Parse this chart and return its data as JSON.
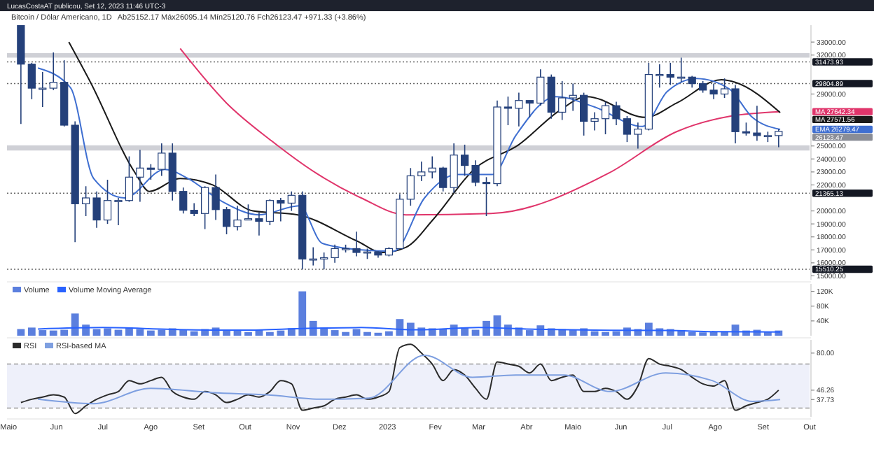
{
  "chart_data": [
    {
      "type": "candlestick",
      "title": "Bitcoin / Dólar Americano, 1D",
      "subtitle": "Ab25152.17 Máx26095.14 Mín25120.76 Fch26123.47 +971.33 (+3.86%)",
      "annotations": [
        "LucasCostaAT publicou, Set 12, 2023 11:46 UTC-3",
        "26123.47"
      ],
      "xlim": [
        "2022-04-30",
        "2023-10-01"
      ],
      "tick_labels": "y",
      "ylim": [
        14700,
        34300
      ],
      "yticks": [
        {
          "value": 15000,
          "label": "15000.00"
        },
        {
          "value": 16000,
          "label": "16000.00"
        },
        {
          "value": 17000,
          "label": "17000.00"
        },
        {
          "value": 18000,
          "label": "18000.00"
        },
        {
          "value": 19000,
          "label": "19000.00"
        },
        {
          "value": 20000,
          "label": "20000.00"
        },
        {
          "value": 22000,
          "label": "22000.00"
        },
        {
          "value": 23000,
          "label": "23000.00"
        },
        {
          "value": 24000,
          "label": "24000.00"
        },
        {
          "value": 25000,
          "label": "25000.00"
        },
        {
          "value": 29000,
          "label": "29000.00"
        },
        {
          "value": 32000,
          "label": "32000.00"
        },
        {
          "value": 33000,
          "label": "33000.00"
        }
      ],
      "color": "#24407a",
      "legend": "right",
      "x": [
        "2022-05-09",
        "2022-05-16",
        "2022-05-23",
        "2022-05-30",
        "2022-06-06",
        "2022-06-13",
        "2022-06-20",
        "2022-06-27",
        "2022-07-04",
        "2022-07-11",
        "2022-07-18",
        "2022-07-25",
        "2022-08-01",
        "2022-08-08",
        "2022-08-15",
        "2022-08-22",
        "2022-08-29",
        "2022-09-05",
        "2022-09-12",
        "2022-09-19",
        "2022-09-26",
        "2022-10-03",
        "2022-10-10",
        "2022-10-17",
        "2022-10-24",
        "2022-10-31",
        "2022-11-07",
        "2022-11-14",
        "2022-11-21",
        "2022-11-28",
        "2022-12-05",
        "2022-12-12",
        "2022-12-19",
        "2022-12-26",
        "2023-01-02",
        "2023-01-09",
        "2023-01-16",
        "2023-01-23",
        "2023-01-30",
        "2023-02-06",
        "2023-02-13",
        "2023-02-20",
        "2023-02-27",
        "2023-03-06",
        "2023-03-13",
        "2023-03-20",
        "2023-03-27",
        "2023-04-03",
        "2023-04-10",
        "2023-04-17",
        "2023-04-24",
        "2023-05-01",
        "2023-05-08",
        "2023-05-15",
        "2023-05-22",
        "2023-05-29",
        "2023-06-05",
        "2023-06-12",
        "2023-06-19",
        "2023-06-26",
        "2023-07-03",
        "2023-07-10",
        "2023-07-17",
        "2023-07-24",
        "2023-07-31",
        "2023-08-07",
        "2023-08-14",
        "2023-08-21",
        "2023-08-28",
        "2023-09-04",
        "2023-09-11"
      ],
      "ohlc": [
        [
          34300,
          34300,
          26700,
          31300
        ],
        [
          31300,
          31400,
          28600,
          29450
        ],
        [
          29450,
          30700,
          28000,
          29450
        ],
        [
          29450,
          32200,
          29300,
          29900
        ],
        [
          29900,
          31600,
          26500,
          26600
        ],
        [
          26600,
          26900,
          17600,
          20550
        ],
        [
          20550,
          21900,
          19600,
          21000
        ],
        [
          21000,
          21500,
          18700,
          19300
        ],
        [
          19300,
          22400,
          19000,
          20800
        ],
        [
          20800,
          21000,
          18900,
          20800
        ],
        [
          20800,
          24200,
          20700,
          22600
        ],
        [
          22600,
          24700,
          20700,
          23300
        ],
        [
          23300,
          23600,
          22400,
          23200
        ],
        [
          23200,
          25200,
          22700,
          24450
        ],
        [
          24450,
          25200,
          20800,
          21500
        ],
        [
          21500,
          21800,
          19800,
          20050
        ],
        [
          20050,
          20600,
          19600,
          19800
        ],
        [
          19800,
          21900,
          18600,
          21800
        ],
        [
          21800,
          22800,
          19300,
          20100
        ],
        [
          20100,
          20300,
          18200,
          18800
        ],
        [
          18800,
          20400,
          18500,
          19300
        ],
        [
          19300,
          20500,
          19300,
          19400
        ],
        [
          19400,
          19900,
          18100,
          19200
        ],
        [
          19200,
          20900,
          18900,
          20800
        ],
        [
          20800,
          21000,
          19200,
          20600
        ],
        [
          20600,
          21500,
          20000,
          21200
        ],
        [
          21200,
          21500,
          15500,
          16300
        ],
        [
          16300,
          17200,
          15800,
          16300
        ],
        [
          16300,
          16800,
          15500,
          16400
        ],
        [
          16400,
          17400,
          16000,
          17100
        ],
        [
          17100,
          17400,
          16800,
          17100
        ],
        [
          17100,
          18400,
          16500,
          16800
        ],
        [
          16800,
          17100,
          16300,
          16840
        ],
        [
          16840,
          16900,
          16400,
          16600
        ],
        [
          16600,
          17200,
          16500,
          17100
        ],
        [
          17100,
          21300,
          17100,
          20900
        ],
        [
          20900,
          23300,
          20400,
          22700
        ],
        [
          22700,
          23800,
          22300,
          23000
        ],
        [
          23000,
          24200,
          22500,
          23300
        ],
        [
          23300,
          23400,
          21500,
          21800
        ],
        [
          21800,
          25200,
          21400,
          24300
        ],
        [
          24300,
          25100,
          22700,
          23500
        ],
        [
          23500,
          23900,
          21900,
          22200
        ],
        [
          22200,
          22600,
          19600,
          22100
        ],
        [
          22100,
          28500,
          21900,
          28000
        ],
        [
          28000,
          28800,
          26600,
          27900
        ],
        [
          27900,
          29100,
          26500,
          28500
        ],
        [
          28500,
          28500,
          27200,
          28300
        ],
        [
          28300,
          30900,
          28100,
          30300
        ],
        [
          30300,
          30500,
          27100,
          27600
        ],
        [
          27600,
          30000,
          27000,
          28700
        ],
        [
          28700,
          29800,
          27700,
          28900
        ],
        [
          28900,
          29100,
          25800,
          26900
        ],
        [
          26900,
          27600,
          26200,
          27100
        ],
        [
          27100,
          28400,
          25900,
          28100
        ],
        [
          28100,
          28400,
          26600,
          27100
        ],
        [
          27100,
          27300,
          25300,
          25900
        ],
        [
          25900,
          26800,
          24800,
          26300
        ],
        [
          26300,
          31400,
          26200,
          30500
        ],
        [
          30500,
          31300,
          29500,
          30500
        ],
        [
          30500,
          31400,
          29700,
          30300
        ],
        [
          30300,
          31800,
          29900,
          30300
        ],
        [
          30300,
          30400,
          29500,
          29800
        ],
        [
          29800,
          30000,
          29100,
          29300
        ],
        [
          29300,
          29800,
          28600,
          29000
        ],
        [
          29000,
          30200,
          28700,
          29400
        ],
        [
          29400,
          29700,
          25200,
          26100
        ],
        [
          26100,
          26800,
          25800,
          26000
        ],
        [
          26000,
          28100,
          25400,
          25800
        ],
        [
          25800,
          26100,
          25300,
          25800
        ],
        [
          25800,
          26300,
          24900,
          26123.47
        ]
      ],
      "series": [
        {
          "name": "MA",
          "type": "line",
          "color": "#e0356b",
          "x": [
            "2022-08-20",
            "2022-09-19",
            "2022-10-18",
            "2022-11-16",
            "2022-12-15",
            "2023-01-13",
            "2023-03-09",
            "2023-05-24",
            "2023-07-07",
            "2023-08-11",
            "2023-09-12"
          ],
          "values": [
            32500,
            28300,
            25400,
            22900,
            21000,
            19700,
            19800,
            22900,
            26100,
            27300,
            27642.34
          ],
          "value_labels": [
            null,
            null,
            null,
            null,
            null,
            null,
            null,
            null,
            null,
            null,
            "27642.34"
          ]
        },
        {
          "name": "MA",
          "type": "line",
          "color": "#1a1a1a",
          "x": [
            "2022-06-09",
            "2022-06-23",
            "2022-07-22",
            "2022-07-31",
            "2022-08-20",
            "2022-09-10",
            "2022-10-06",
            "2022-11-04",
            "2022-12-12",
            "2022-12-29",
            "2023-01-13",
            "2023-01-31",
            "2023-02-26",
            "2023-03-27",
            "2023-04-22",
            "2023-05-10",
            "2023-06-17",
            "2023-07-07",
            "2023-08-05",
            "2023-08-14",
            "2023-09-12"
          ],
          "values": [
            33000,
            29900,
            22900,
            21500,
            22500,
            22000,
            20000,
            19700,
            17700,
            16800,
            17200,
            19400,
            23200,
            25100,
            27700,
            28800,
            27200,
            28300,
            30100,
            29900,
            27571.56
          ],
          "value_labels": [
            null,
            null,
            null,
            null,
            null,
            null,
            null,
            null,
            null,
            null,
            null,
            null,
            null,
            null,
            null,
            null,
            null,
            null,
            null,
            null,
            "27571.56"
          ]
        },
        {
          "name": "EMA",
          "type": "line",
          "color": "#3f6fd1",
          "x": [
            "2022-05-20",
            "2022-06-10",
            "2022-06-25",
            "2022-07-15",
            "2022-08-10",
            "2022-08-25",
            "2022-09-15",
            "2022-10-10",
            "2022-11-05",
            "2022-11-20",
            "2022-12-15",
            "2023-01-05",
            "2023-01-25",
            "2023-02-15",
            "2023-03-10",
            "2023-03-25",
            "2023-04-20",
            "2023-05-15",
            "2023-06-15",
            "2023-07-01",
            "2023-07-20",
            "2023-08-10",
            "2023-08-25",
            "2023-09-12"
          ],
          "values": [
            31000,
            29500,
            22500,
            21000,
            23200,
            22500,
            20800,
            19700,
            20400,
            17500,
            17000,
            16900,
            21000,
            22800,
            22800,
            25800,
            28800,
            28000,
            26500,
            29200,
            30200,
            29400,
            27200,
            26279.47
          ],
          "value_labels": [
            null,
            null,
            null,
            null,
            null,
            null,
            null,
            null,
            null,
            null,
            null,
            null,
            null,
            null,
            null,
            null,
            null,
            null,
            null,
            null,
            null,
            null,
            null,
            "26279.47"
          ]
        }
      ],
      "ref_lines": [
        {
          "axis": "y",
          "value": 31473.93,
          "label": "31473.93",
          "color": "#666666",
          "line_style": "dotted"
        },
        {
          "axis": "y",
          "value": 29804.89,
          "label": "29804.89",
          "color": "#666666",
          "line_style": "dotted"
        },
        {
          "axis": "y",
          "value": 21365.13,
          "label": "21365.13",
          "color": "#666666",
          "line_style": "dotted"
        },
        {
          "axis": "y",
          "value": 15510.25,
          "label": "15510.25",
          "color": "#666666",
          "line_style": "dotted"
        }
      ],
      "bands": [
        {
          "axis": "y",
          "from": 31800,
          "to": 32150,
          "color": "#cfd0d6"
        },
        {
          "axis": "y",
          "from": 24650,
          "to": 25050,
          "color": "#cfd0d6"
        }
      ]
    },
    {
      "type": "bar",
      "xlim": [
        "2022-04-30",
        "2023-10-01"
      ],
      "tick_labels": "y",
      "ylim": [
        0,
        140
      ],
      "yticks": [
        {
          "value": 40,
          "label": "40K"
        },
        {
          "value": 80,
          "label": "80K"
        },
        {
          "value": 120,
          "label": "120K"
        }
      ],
      "legend": "top left",
      "x": [
        "2022-05-09",
        "2022-05-16",
        "2022-05-23",
        "2022-05-30",
        "2022-06-06",
        "2022-06-13",
        "2022-06-20",
        "2022-06-27",
        "2022-07-04",
        "2022-07-11",
        "2022-07-18",
        "2022-07-25",
        "2022-08-01",
        "2022-08-08",
        "2022-08-15",
        "2022-08-22",
        "2022-08-29",
        "2022-09-05",
        "2022-09-12",
        "2022-09-19",
        "2022-09-26",
        "2022-10-03",
        "2022-10-10",
        "2022-10-17",
        "2022-10-24",
        "2022-10-31",
        "2022-11-07",
        "2022-11-14",
        "2022-11-21",
        "2022-11-28",
        "2022-12-05",
        "2022-12-12",
        "2022-12-19",
        "2022-12-26",
        "2023-01-02",
        "2023-01-09",
        "2023-01-16",
        "2023-01-23",
        "2023-01-30",
        "2023-02-06",
        "2023-02-13",
        "2023-02-20",
        "2023-02-27",
        "2023-03-06",
        "2023-03-13",
        "2023-03-20",
        "2023-03-27",
        "2023-04-03",
        "2023-04-10",
        "2023-04-17",
        "2023-04-24",
        "2023-05-01",
        "2023-05-08",
        "2023-05-15",
        "2023-05-22",
        "2023-05-29",
        "2023-06-05",
        "2023-06-12",
        "2023-06-19",
        "2023-06-26",
        "2023-07-03",
        "2023-07-10",
        "2023-07-17",
        "2023-07-24",
        "2023-07-31",
        "2023-08-07",
        "2023-08-14",
        "2023-08-21",
        "2023-08-28",
        "2023-09-04",
        "2023-09-11"
      ],
      "series": [
        {
          "name": "Volume",
          "type": "bar",
          "color": "#5b7fde",
          "values": [
            18,
            22,
            15,
            14,
            16,
            60,
            30,
            18,
            20,
            16,
            22,
            18,
            14,
            16,
            20,
            15,
            12,
            18,
            22,
            14,
            14,
            10,
            16,
            10,
            14,
            20,
            120,
            40,
            22,
            15,
            10,
            18,
            10,
            8,
            12,
            45,
            35,
            22,
            20,
            18,
            30,
            22,
            16,
            40,
            55,
            30,
            22,
            15,
            28,
            20,
            18,
            15,
            20,
            12,
            10,
            12,
            22,
            18,
            35,
            20,
            18,
            14,
            10,
            9,
            10,
            12,
            30,
            14,
            16,
            10,
            14
          ]
        },
        {
          "name": "Volume Moving Average",
          "type": "line",
          "color": "#2962ff",
          "x": [
            "2022-05-20",
            "2022-07-01",
            "2022-08-15",
            "2022-10-01",
            "2022-11-10",
            "2022-12-15",
            "2023-01-20",
            "2023-03-01",
            "2023-04-01",
            "2023-05-15",
            "2023-07-01",
            "2023-08-01",
            "2023-09-12"
          ],
          "values": [
            18,
            22,
            17,
            15,
            20,
            22,
            16,
            22,
            18,
            15,
            14,
            11,
            10
          ]
        }
      ]
    },
    {
      "type": "line",
      "xlim": [
        "2022-04-30",
        "2023-10-01"
      ],
      "ylim": [
        22,
        92
      ],
      "yticks": [
        {
          "value": 80,
          "label": "80.00"
        },
        {
          "value": 46.26,
          "label": "46.26"
        },
        {
          "value": 37.73,
          "label": "37.73"
        }
      ],
      "legend": "top left",
      "xticks": [
        {
          "value": "2022-05-01",
          "label": "Maio"
        },
        {
          "value": "2022-06-01",
          "label": "Jun"
        },
        {
          "value": "2022-07-01",
          "label": "Jul"
        },
        {
          "value": "2022-08-01",
          "label": "Ago"
        },
        {
          "value": "2022-09-01",
          "label": "Set"
        },
        {
          "value": "2022-10-01",
          "label": "Out"
        },
        {
          "value": "2022-11-01",
          "label": "Nov"
        },
        {
          "value": "2022-12-01",
          "label": "Dez"
        },
        {
          "value": "2023-01-01",
          "label": "2023"
        },
        {
          "value": "2023-02-01",
          "label": "Fev"
        },
        {
          "value": "2023-03-01",
          "label": "Mar"
        },
        {
          "value": "2023-04-01",
          "label": "Abr"
        },
        {
          "value": "2023-05-01",
          "label": "Maio"
        },
        {
          "value": "2023-06-01",
          "label": "Jun"
        },
        {
          "value": "2023-07-01",
          "label": "Jul"
        },
        {
          "value": "2023-08-01",
          "label": "Ago"
        },
        {
          "value": "2023-09-01",
          "label": "Set"
        },
        {
          "value": "2023-10-01",
          "label": "Out"
        }
      ],
      "bands": [
        {
          "axis": "y",
          "from": 30,
          "to": 70,
          "color": "#eef0fa"
        }
      ],
      "ref_lines": [
        {
          "axis": "y",
          "value": 70,
          "color": "#9a9a9a",
          "line_style": "dashed"
        },
        {
          "axis": "y",
          "value": 30,
          "color": "#9a9a9a",
          "line_style": "dashed"
        }
      ],
      "series": [
        {
          "name": "RSI",
          "color": "#2b2b2b",
          "x": [
            "2022-05-09",
            "2022-05-16",
            "2022-05-23",
            "2022-05-30",
            "2022-06-06",
            "2022-06-13",
            "2022-06-20",
            "2022-06-27",
            "2022-07-04",
            "2022-07-11",
            "2022-07-18",
            "2022-07-25",
            "2022-08-01",
            "2022-08-08",
            "2022-08-15",
            "2022-08-22",
            "2022-08-29",
            "2022-09-05",
            "2022-09-12",
            "2022-09-19",
            "2022-09-26",
            "2022-10-03",
            "2022-10-10",
            "2022-10-17",
            "2022-10-24",
            "2022-10-31",
            "2022-11-07",
            "2022-11-14",
            "2022-11-21",
            "2022-11-28",
            "2022-12-05",
            "2022-12-12",
            "2022-12-19",
            "2022-12-26",
            "2023-01-02",
            "2023-01-09",
            "2023-01-16",
            "2023-01-23",
            "2023-01-30",
            "2023-02-06",
            "2023-02-13",
            "2023-02-20",
            "2023-02-27",
            "2023-03-06",
            "2023-03-13",
            "2023-03-20",
            "2023-03-27",
            "2023-04-03",
            "2023-04-10",
            "2023-04-17",
            "2023-04-24",
            "2023-05-01",
            "2023-05-08",
            "2023-05-15",
            "2023-05-22",
            "2023-05-29",
            "2023-06-05",
            "2023-06-12",
            "2023-06-19",
            "2023-06-26",
            "2023-07-03",
            "2023-07-10",
            "2023-07-17",
            "2023-07-24",
            "2023-07-31",
            "2023-08-07",
            "2023-08-14",
            "2023-08-21",
            "2023-08-28",
            "2023-09-04",
            "2023-09-11"
          ],
          "values": [
            35,
            38,
            40,
            42,
            40,
            25,
            32,
            38,
            42,
            45,
            55,
            52,
            55,
            58,
            45,
            40,
            38,
            45,
            42,
            35,
            38,
            42,
            40,
            45,
            55,
            52,
            28,
            30,
            32,
            38,
            40,
            42,
            38,
            40,
            45,
            85,
            88,
            80,
            70,
            55,
            65,
            60,
            48,
            38,
            72,
            70,
            68,
            62,
            70,
            55,
            58,
            60,
            45,
            45,
            48,
            45,
            38,
            50,
            75,
            70,
            68,
            65,
            58,
            52,
            50,
            55,
            28,
            32,
            35,
            38,
            46.26
          ]
        },
        {
          "name": "RSI-based MA",
          "color": "#7e9fe0",
          "x": [
            "2022-05-20",
            "2022-06-25",
            "2022-08-01",
            "2022-09-10",
            "2022-10-15",
            "2022-11-20",
            "2022-12-20",
            "2023-01-25",
            "2023-02-25",
            "2023-03-25",
            "2023-04-25",
            "2023-05-25",
            "2023-06-30",
            "2023-07-30",
            "2023-08-25",
            "2023-09-12"
          ],
          "values": [
            38,
            34,
            48,
            44,
            42,
            38,
            39,
            78,
            58,
            60,
            60,
            45,
            62,
            55,
            36,
            37.73
          ]
        }
      ]
    }
  ]
}
